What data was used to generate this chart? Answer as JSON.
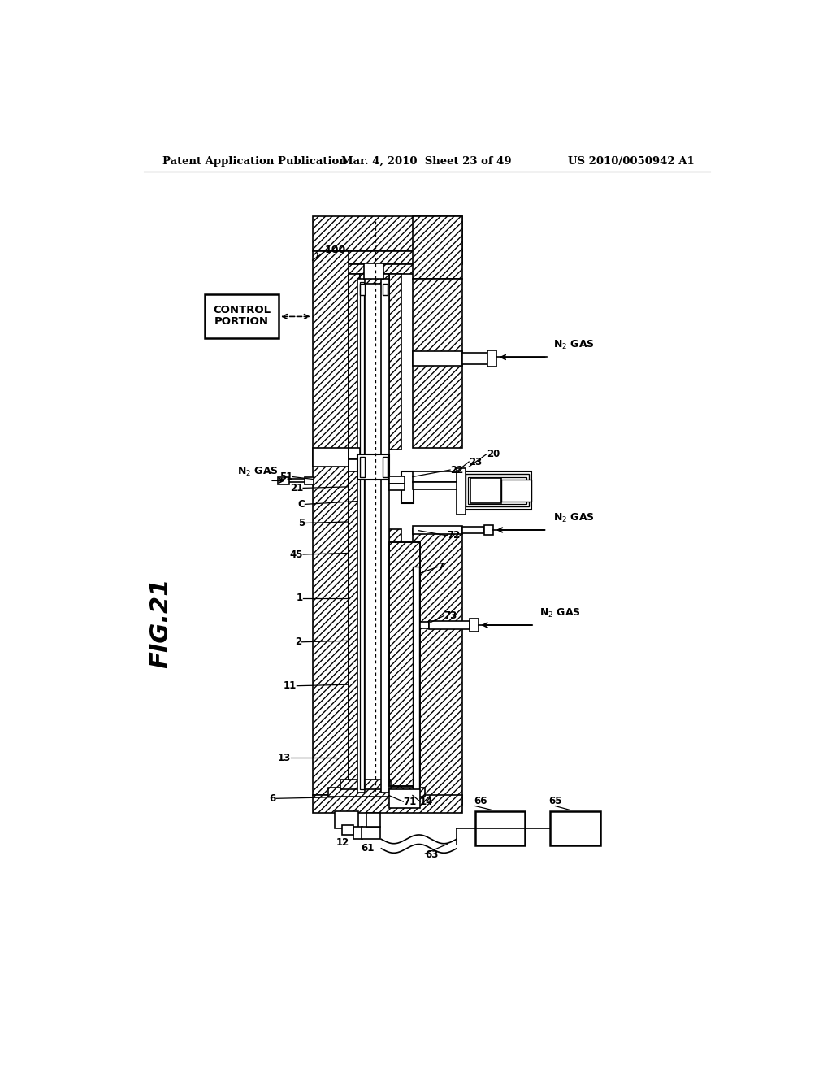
{
  "header_left": "Patent Application Publication",
  "header_mid": "Mar. 4, 2010  Sheet 23 of 49",
  "header_right": "US 2010/0050942 A1",
  "fig_label": "FIG.21",
  "bg": "#ffffff"
}
